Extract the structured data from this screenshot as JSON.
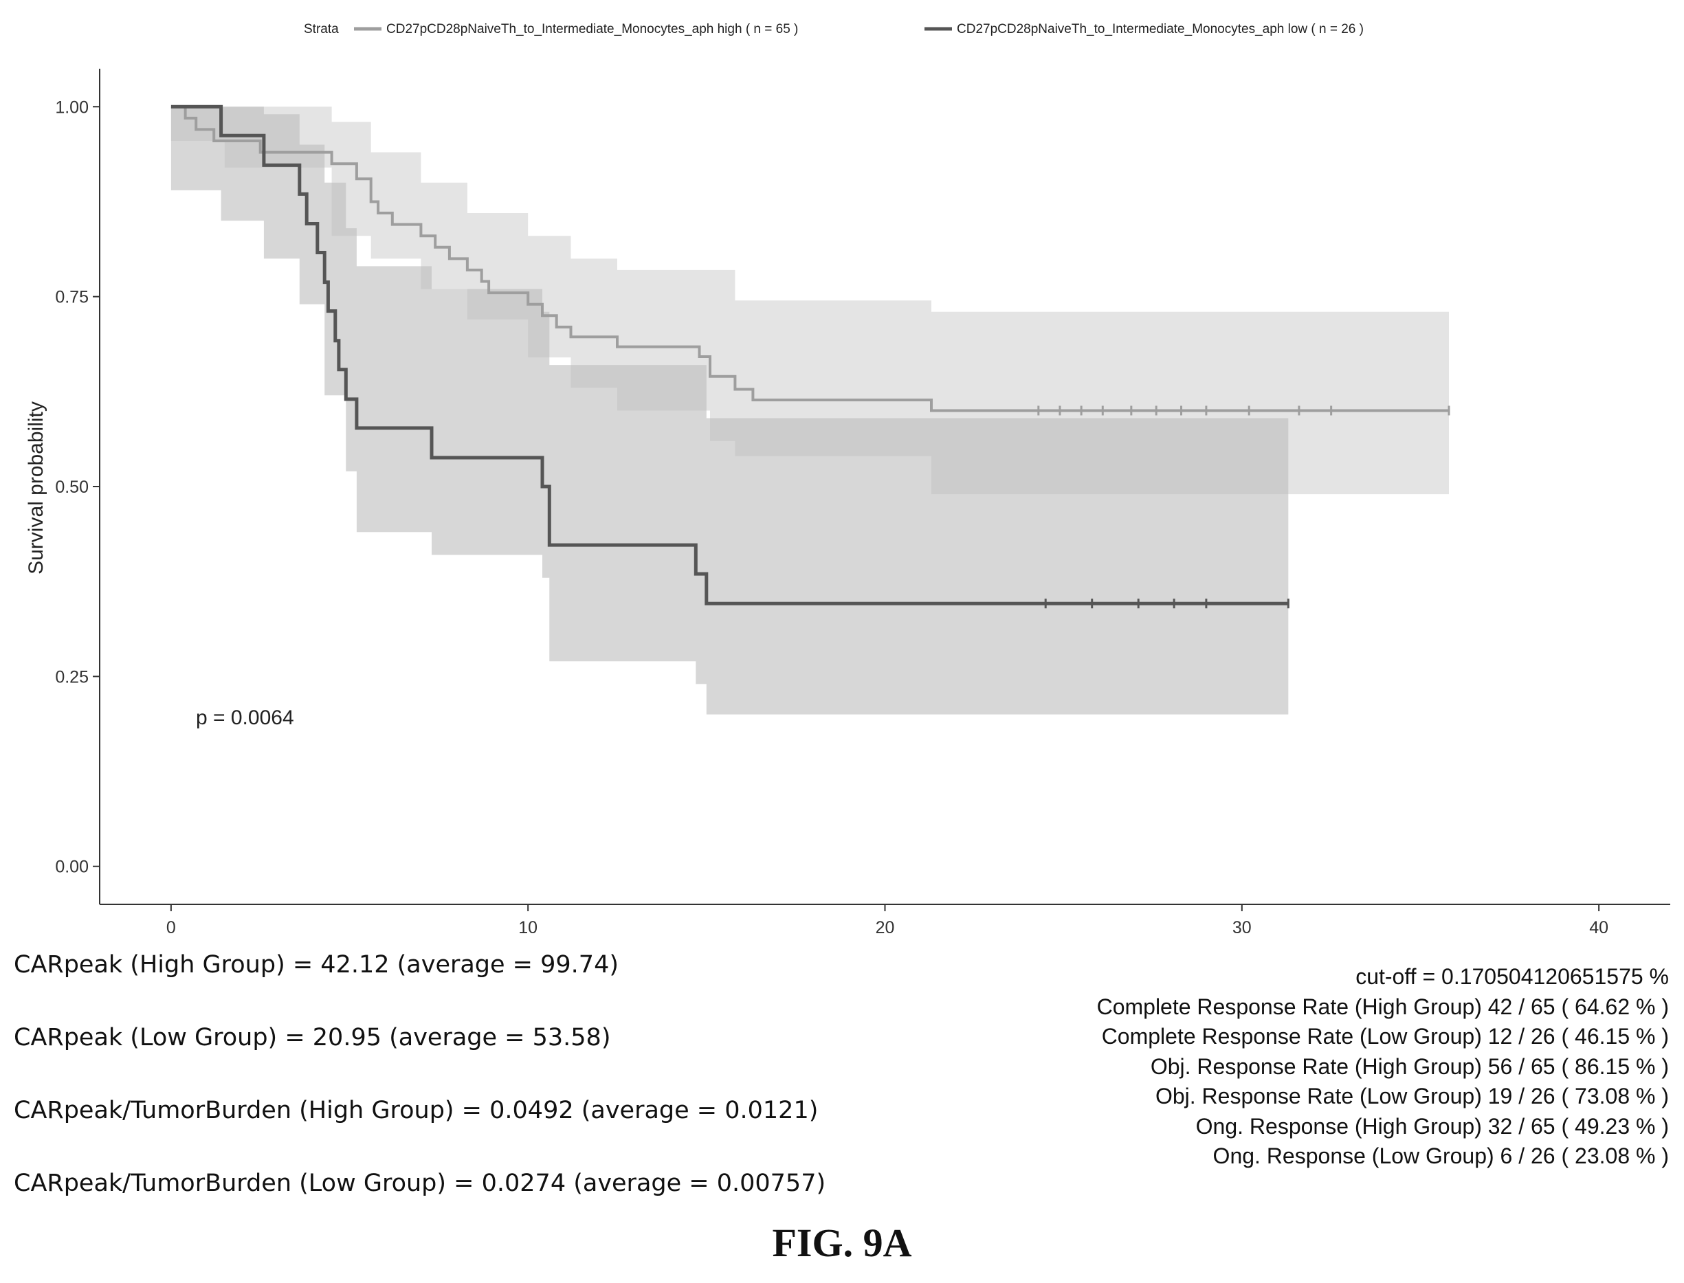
{
  "chart_data": {
    "type": "line",
    "subtype": "kaplan-meier",
    "title": "",
    "xlabel": "",
    "ylabel": "Survival probability",
    "xlim": [
      -2,
      42
    ],
    "ylim": [
      -0.05,
      1.05
    ],
    "x_ticks": [
      0,
      10,
      20,
      30,
      40
    ],
    "y_ticks": [
      0.0,
      0.25,
      0.5,
      0.75,
      1.0
    ],
    "y_tick_labels": [
      "0.00",
      "0.25",
      "0.50",
      "0.75",
      "1.00"
    ],
    "grid": false,
    "legend": {
      "position": "top",
      "title": "Strata",
      "entries": [
        "CD27pCD28pNaiveTh_to_Intermediate_Monocytes_aph high ( n = 65 )",
        "CD27pCD28pNaiveTh_to_Intermediate_Monocytes_aph low ( n = 26 )"
      ]
    },
    "annotation": "p = 0.0064",
    "series": [
      {
        "name": "CD27pCD28pNaiveTh_to_Intermediate_Monocytes_aph high ( n = 65 )",
        "color": "#9e9e9e",
        "steps": [
          [
            0,
            1.0
          ],
          [
            0.4,
            0.985
          ],
          [
            0.7,
            0.97
          ],
          [
            1.2,
            0.955
          ],
          [
            2.5,
            0.94
          ],
          [
            4.5,
            0.925
          ],
          [
            5.2,
            0.905
          ],
          [
            5.6,
            0.875
          ],
          [
            5.8,
            0.86
          ],
          [
            6.2,
            0.845
          ],
          [
            7.0,
            0.83
          ],
          [
            7.4,
            0.815
          ],
          [
            7.8,
            0.8
          ],
          [
            8.3,
            0.785
          ],
          [
            8.7,
            0.77
          ],
          [
            8.9,
            0.755
          ],
          [
            10.0,
            0.74
          ],
          [
            10.4,
            0.725
          ],
          [
            10.8,
            0.71
          ],
          [
            11.2,
            0.697
          ],
          [
            12.5,
            0.684
          ],
          [
            14.8,
            0.671
          ],
          [
            15.1,
            0.645
          ],
          [
            15.8,
            0.628
          ],
          [
            16.3,
            0.614
          ],
          [
            21.3,
            0.6
          ],
          [
            35.8,
            0.6
          ]
        ],
        "ci_upper": [
          [
            0,
            1.0
          ],
          [
            1.5,
            1.0
          ],
          [
            4.5,
            0.98
          ],
          [
            5.6,
            0.94
          ],
          [
            7.0,
            0.9
          ],
          [
            8.3,
            0.86
          ],
          [
            10.0,
            0.83
          ],
          [
            11.2,
            0.8
          ],
          [
            12.5,
            0.785
          ],
          [
            15.8,
            0.745
          ],
          [
            21.3,
            0.73
          ],
          [
            35.8,
            0.73
          ]
        ],
        "ci_lower": [
          [
            0,
            0.955
          ],
          [
            1.5,
            0.92
          ],
          [
            4.5,
            0.83
          ],
          [
            5.6,
            0.8
          ],
          [
            7.0,
            0.76
          ],
          [
            8.3,
            0.72
          ],
          [
            10.0,
            0.67
          ],
          [
            11.2,
            0.63
          ],
          [
            12.5,
            0.6
          ],
          [
            15.1,
            0.56
          ],
          [
            15.8,
            0.54
          ],
          [
            21.3,
            0.49
          ],
          [
            35.8,
            0.49
          ]
        ],
        "censor_x": [
          24.3,
          24.9,
          25.5,
          26.1,
          26.9,
          27.6,
          28.3,
          29.0,
          30.2,
          31.6,
          32.5,
          35.8
        ]
      },
      {
        "name": "CD27pCD28pNaiveTh_to_Intermediate_Monocytes_aph low ( n = 26 )",
        "color": "#555555",
        "steps": [
          [
            0,
            1.0
          ],
          [
            1.4,
            0.962
          ],
          [
            2.6,
            0.923
          ],
          [
            3.6,
            0.885
          ],
          [
            3.8,
            0.846
          ],
          [
            4.1,
            0.808
          ],
          [
            4.3,
            0.769
          ],
          [
            4.4,
            0.731
          ],
          [
            4.6,
            0.692
          ],
          [
            4.7,
            0.654
          ],
          [
            4.9,
            0.615
          ],
          [
            5.2,
            0.577
          ],
          [
            7.3,
            0.538
          ],
          [
            10.4,
            0.5
          ],
          [
            10.6,
            0.423
          ],
          [
            14.7,
            0.385
          ],
          [
            15.0,
            0.346
          ],
          [
            31.3,
            0.346
          ]
        ],
        "ci_upper": [
          [
            0,
            1.0
          ],
          [
            1.4,
            1.0
          ],
          [
            2.6,
            0.99
          ],
          [
            3.6,
            0.95
          ],
          [
            4.3,
            0.9
          ],
          [
            4.9,
            0.84
          ],
          [
            5.2,
            0.79
          ],
          [
            7.3,
            0.76
          ],
          [
            10.4,
            0.73
          ],
          [
            10.6,
            0.66
          ],
          [
            15.0,
            0.59
          ],
          [
            31.3,
            0.59
          ]
        ],
        "ci_lower": [
          [
            0,
            0.89
          ],
          [
            1.4,
            0.85
          ],
          [
            2.6,
            0.8
          ],
          [
            3.6,
            0.74
          ],
          [
            4.3,
            0.62
          ],
          [
            4.9,
            0.52
          ],
          [
            5.2,
            0.44
          ],
          [
            7.3,
            0.41
          ],
          [
            10.4,
            0.38
          ],
          [
            10.6,
            0.27
          ],
          [
            14.7,
            0.24
          ],
          [
            15.0,
            0.2
          ],
          [
            31.3,
            0.2
          ]
        ],
        "censor_x": [
          24.5,
          25.8,
          27.1,
          28.1,
          29.0,
          31.3
        ]
      }
    ]
  },
  "stats_left": [
    "CARpeak (High Group) = 42.12 (average = 99.74)",
    "CARpeak (Low Group) = 20.95 (average = 53.58)",
    "CARpeak/TumorBurden (High Group) = 0.0492 (average = 0.0121)",
    "CARpeak/TumorBurden (Low Group) = 0.0274 (average = 0.00757)"
  ],
  "stats_right": [
    "cut-off = 0.170504120651575 %",
    "Complete Response Rate (High Group) 42 / 65 ( 64.62 % )",
    "Complete Response Rate (Low Group) 12 / 26 ( 46.15 % )",
    "Obj. Response Rate (High Group) 56 / 65 ( 86.15 % )",
    "Obj. Response Rate (Low Group) 19 / 26 ( 73.08 % )",
    "Ong. Response (High Group) 32 / 65 ( 49.23 % )",
    "Ong. Response (Low Group) 6 / 26 ( 23.08 % )"
  ],
  "figure_label": "FIG. 9A"
}
